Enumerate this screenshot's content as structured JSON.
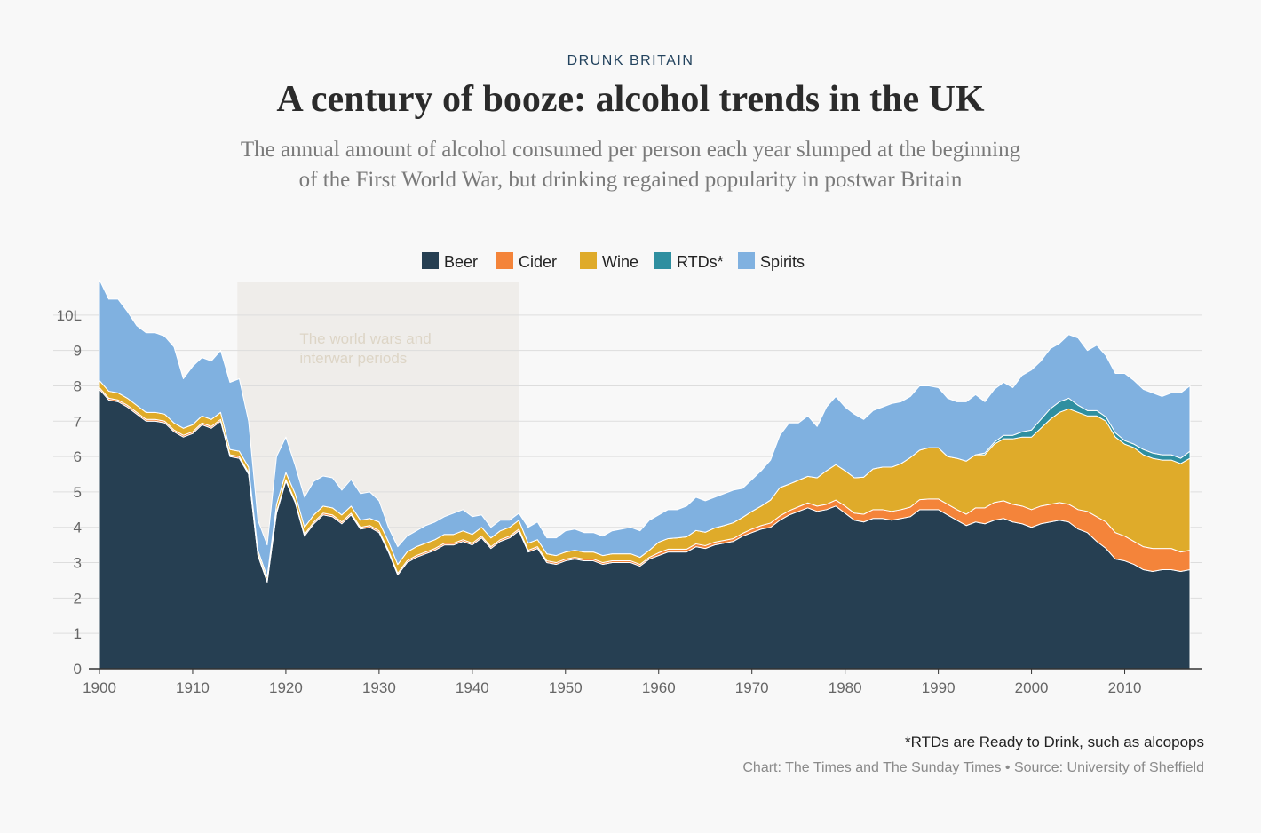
{
  "chart_data": {
    "type": "stacked-area",
    "kicker": "DRUNK BRITAIN",
    "title": "A century of booze: alcohol trends in the UK",
    "subtitle": "The annual amount of alcohol consumed per person each year slumped at the beginning of the First World War, but drinking regained popularity in postwar Britain",
    "footnote": "*RTDs are Ready to Drink, such as alcopops",
    "credit": "Chart: The Times and The Sunday Times • Source: University of Sheffield",
    "annotation": {
      "lines": [
        "The world wars and",
        "interwar periods"
      ],
      "x0": 1914.8,
      "x1": 1945
    },
    "xlim": [
      1900,
      2018
    ],
    "ylim": [
      0,
      11
    ],
    "xticks": [
      1900,
      1910,
      1920,
      1930,
      1940,
      1950,
      1960,
      1970,
      1980,
      1990,
      2000,
      2010
    ],
    "yticks": [
      0,
      1,
      2,
      3,
      4,
      5,
      6,
      7,
      8,
      9,
      {
        "value": 10,
        "label": "10L"
      }
    ],
    "grid": true,
    "legend": "top",
    "x": [
      1900,
      1901,
      1902,
      1903,
      1904,
      1905,
      1906,
      1907,
      1908,
      1909,
      1910,
      1911,
      1912,
      1913,
      1914,
      1915,
      1916,
      1917,
      1918,
      1919,
      1920,
      1921,
      1922,
      1923,
      1924,
      1925,
      1926,
      1927,
      1928,
      1929,
      1930,
      1931,
      1932,
      1933,
      1934,
      1935,
      1936,
      1937,
      1938,
      1939,
      1940,
      1941,
      1942,
      1943,
      1944,
      1945,
      1946,
      1947,
      1948,
      1949,
      1950,
      1951,
      1952,
      1953,
      1954,
      1955,
      1956,
      1957,
      1958,
      1959,
      1960,
      1961,
      1962,
      1963,
      1964,
      1965,
      1966,
      1967,
      1968,
      1969,
      1970,
      1971,
      1972,
      1973,
      1974,
      1975,
      1976,
      1977,
      1978,
      1979,
      1980,
      1981,
      1982,
      1983,
      1984,
      1985,
      1986,
      1987,
      1988,
      1989,
      1990,
      1991,
      1992,
      1993,
      1994,
      1995,
      1996,
      1997,
      1998,
      1999,
      2000,
      2001,
      2002,
      2003,
      2004,
      2005,
      2006,
      2007,
      2008,
      2009,
      2010,
      2011,
      2012,
      2013,
      2014,
      2015,
      2016,
      2017
    ],
    "series": [
      {
        "name": "Beer",
        "color": "#263f52",
        "values": [
          7.9,
          7.6,
          7.55,
          7.4,
          7.2,
          7.0,
          7.0,
          6.95,
          6.7,
          6.55,
          6.65,
          6.9,
          6.8,
          7.0,
          6.0,
          5.95,
          5.5,
          3.2,
          2.45,
          4.4,
          5.3,
          4.7,
          3.75,
          4.1,
          4.35,
          4.3,
          4.1,
          4.35,
          3.95,
          4.0,
          3.85,
          3.3,
          2.65,
          3.0,
          3.15,
          3.25,
          3.35,
          3.5,
          3.5,
          3.6,
          3.5,
          3.7,
          3.4,
          3.6,
          3.7,
          3.9,
          3.3,
          3.4,
          3.0,
          2.95,
          3.05,
          3.1,
          3.05,
          3.05,
          2.95,
          3.0,
          3.0,
          3.0,
          2.9,
          3.1,
          3.2,
          3.3,
          3.3,
          3.3,
          3.45,
          3.4,
          3.5,
          3.55,
          3.6,
          3.75,
          3.85,
          3.95,
          4.0,
          4.2,
          4.35,
          4.45,
          4.55,
          4.45,
          4.5,
          4.6,
          4.4,
          4.2,
          4.15,
          4.25,
          4.25,
          4.2,
          4.25,
          4.3,
          4.5,
          4.5,
          4.5,
          4.35,
          4.2,
          4.05,
          4.15,
          4.1,
          4.2,
          4.25,
          4.15,
          4.1,
          4.0,
          4.1,
          4.15,
          4.2,
          4.15,
          3.95,
          3.85,
          3.6,
          3.4,
          3.1,
          3.05,
          2.95,
          2.8,
          2.75,
          2.8,
          2.8,
          2.75,
          2.8
        ]
      },
      {
        "name": "Cider",
        "color": "#f4843a",
        "values": [
          0.05,
          0.05,
          0.05,
          0.05,
          0.05,
          0.05,
          0.05,
          0.05,
          0.05,
          0.05,
          0.05,
          0.05,
          0.05,
          0.05,
          0.05,
          0.05,
          0.05,
          0.05,
          0.05,
          0.05,
          0.05,
          0.05,
          0.05,
          0.05,
          0.05,
          0.05,
          0.05,
          0.05,
          0.05,
          0.05,
          0.05,
          0.05,
          0.05,
          0.05,
          0.05,
          0.05,
          0.05,
          0.05,
          0.05,
          0.05,
          0.05,
          0.05,
          0.05,
          0.05,
          0.05,
          0.05,
          0.05,
          0.05,
          0.05,
          0.05,
          0.05,
          0.05,
          0.05,
          0.05,
          0.05,
          0.05,
          0.05,
          0.05,
          0.05,
          0.05,
          0.08,
          0.08,
          0.08,
          0.08,
          0.08,
          0.08,
          0.08,
          0.08,
          0.08,
          0.08,
          0.1,
          0.1,
          0.12,
          0.12,
          0.12,
          0.13,
          0.14,
          0.15,
          0.15,
          0.17,
          0.2,
          0.2,
          0.22,
          0.25,
          0.25,
          0.25,
          0.25,
          0.27,
          0.28,
          0.3,
          0.3,
          0.3,
          0.3,
          0.32,
          0.4,
          0.45,
          0.5,
          0.5,
          0.5,
          0.5,
          0.5,
          0.5,
          0.5,
          0.5,
          0.5,
          0.55,
          0.6,
          0.7,
          0.75,
          0.75,
          0.7,
          0.65,
          0.65,
          0.65,
          0.6,
          0.6,
          0.55,
          0.55
        ]
      },
      {
        "name": "Wine",
        "color": "#dfab2a",
        "values": [
          0.2,
          0.2,
          0.2,
          0.2,
          0.2,
          0.2,
          0.2,
          0.2,
          0.2,
          0.2,
          0.2,
          0.2,
          0.2,
          0.2,
          0.15,
          0.15,
          0.15,
          0.1,
          0.1,
          0.2,
          0.2,
          0.2,
          0.2,
          0.2,
          0.2,
          0.2,
          0.2,
          0.2,
          0.2,
          0.2,
          0.25,
          0.25,
          0.25,
          0.25,
          0.25,
          0.25,
          0.25,
          0.25,
          0.25,
          0.25,
          0.25,
          0.25,
          0.25,
          0.25,
          0.25,
          0.25,
          0.2,
          0.2,
          0.2,
          0.2,
          0.2,
          0.2,
          0.2,
          0.2,
          0.2,
          0.2,
          0.2,
          0.2,
          0.2,
          0.2,
          0.3,
          0.3,
          0.32,
          0.35,
          0.38,
          0.38,
          0.4,
          0.42,
          0.45,
          0.45,
          0.5,
          0.55,
          0.65,
          0.8,
          0.75,
          0.75,
          0.75,
          0.8,
          0.95,
          1.0,
          1.0,
          1.0,
          1.05,
          1.15,
          1.2,
          1.25,
          1.3,
          1.4,
          1.4,
          1.45,
          1.45,
          1.35,
          1.45,
          1.5,
          1.5,
          1.5,
          1.65,
          1.75,
          1.85,
          1.95,
          2.05,
          2.2,
          2.4,
          2.55,
          2.7,
          2.75,
          2.7,
          2.85,
          2.85,
          2.7,
          2.6,
          2.65,
          2.6,
          2.55,
          2.5,
          2.5,
          2.5,
          2.6
        ]
      },
      {
        "name": "RTDs*",
        "color": "#2f8fa0",
        "values": [
          0,
          0,
          0,
          0,
          0,
          0,
          0,
          0,
          0,
          0,
          0,
          0,
          0,
          0,
          0,
          0,
          0,
          0,
          0,
          0,
          0,
          0,
          0,
          0,
          0,
          0,
          0,
          0,
          0,
          0,
          0,
          0,
          0,
          0,
          0,
          0,
          0,
          0,
          0,
          0,
          0,
          0,
          0,
          0,
          0,
          0,
          0,
          0,
          0,
          0,
          0,
          0,
          0,
          0,
          0,
          0,
          0,
          0,
          0,
          0,
          0,
          0,
          0,
          0,
          0,
          0,
          0,
          0,
          0,
          0,
          0,
          0,
          0,
          0,
          0,
          0,
          0,
          0,
          0,
          0,
          0,
          0,
          0,
          0,
          0,
          0,
          0,
          0,
          0,
          0,
          0,
          0,
          0,
          0,
          0,
          0.05,
          0.05,
          0.1,
          0.1,
          0.15,
          0.2,
          0.25,
          0.3,
          0.3,
          0.3,
          0.2,
          0.15,
          0.15,
          0.12,
          0.12,
          0.1,
          0.1,
          0.15,
          0.15,
          0.15,
          0.15,
          0.15,
          0.2
        ]
      },
      {
        "name": "Spirits",
        "color": "#80b1e0",
        "values": [
          2.85,
          2.6,
          2.65,
          2.45,
          2.25,
          2.25,
          2.25,
          2.2,
          2.15,
          1.4,
          1.65,
          1.65,
          1.65,
          1.75,
          1.9,
          2.05,
          1.3,
          0.85,
          0.9,
          1.35,
          1.0,
          0.8,
          0.85,
          0.95,
          0.85,
          0.85,
          0.7,
          0.75,
          0.75,
          0.75,
          0.6,
          0.4,
          0.5,
          0.45,
          0.45,
          0.5,
          0.5,
          0.5,
          0.6,
          0.6,
          0.5,
          0.35,
          0.3,
          0.3,
          0.2,
          0.2,
          0.45,
          0.5,
          0.45,
          0.5,
          0.6,
          0.6,
          0.55,
          0.55,
          0.55,
          0.65,
          0.7,
          0.75,
          0.75,
          0.85,
          0.77,
          0.82,
          0.8,
          0.87,
          0.94,
          0.89,
          0.87,
          0.9,
          0.92,
          0.82,
          0.9,
          1.0,
          1.13,
          1.48,
          1.73,
          1.62,
          1.71,
          1.45,
          1.8,
          1.93,
          1.8,
          1.8,
          1.63,
          1.65,
          1.7,
          1.8,
          1.75,
          1.73,
          1.82,
          1.75,
          1.7,
          1.65,
          1.6,
          1.68,
          1.7,
          1.45,
          1.5,
          1.5,
          1.35,
          1.6,
          1.7,
          1.65,
          1.7,
          1.65,
          1.8,
          1.9,
          1.7,
          1.85,
          1.73,
          1.68,
          1.9,
          1.8,
          1.7,
          1.7,
          1.65,
          1.75,
          1.85,
          1.85
        ]
      }
    ]
  }
}
